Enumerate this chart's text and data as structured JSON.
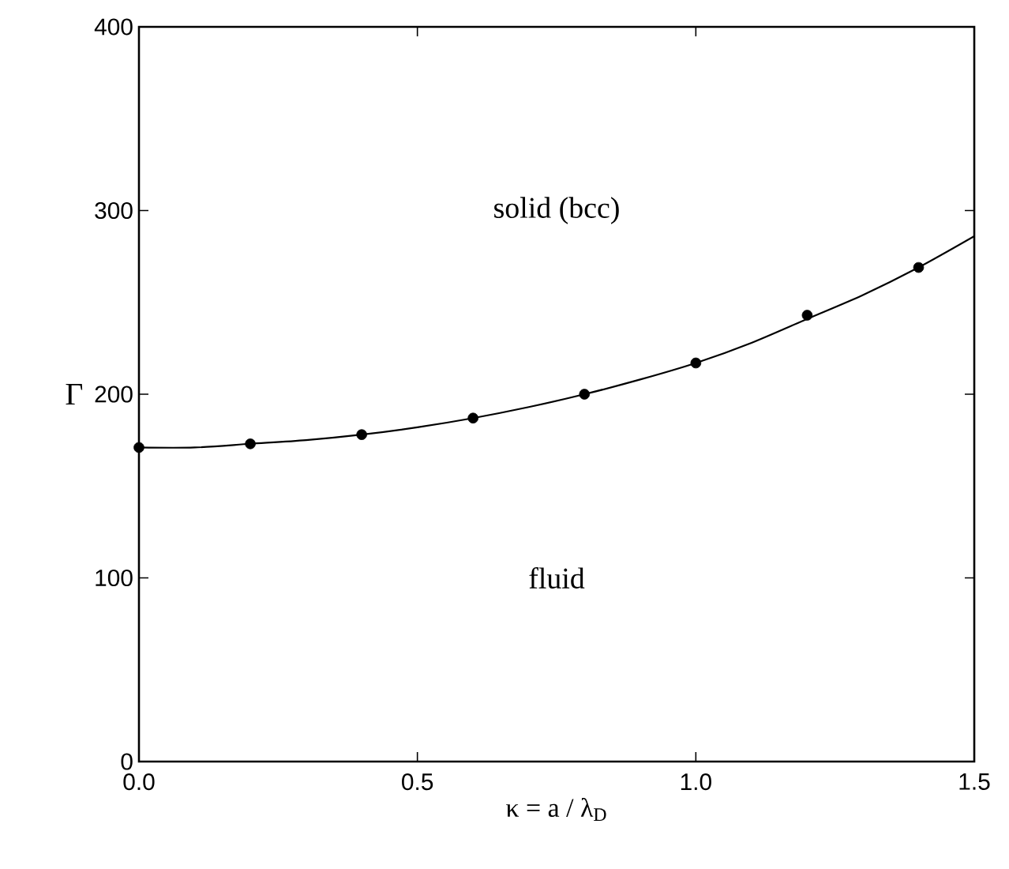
{
  "chart_data": {
    "type": "scatter",
    "xlabel": "κ = a / λ$_{D}$",
    "ylabel": "Γ",
    "xlim": [
      0,
      1.5
    ],
    "ylim": [
      0,
      400
    ],
    "xticks": [
      {
        "value": 0,
        "label": "0.0"
      },
      0.5,
      {
        "value": 1,
        "label": "1.0"
      },
      1.5
    ],
    "yticks": [
      0,
      100,
      200,
      300,
      400
    ],
    "series": [
      {
        "color": "#000000",
        "marker": "circle",
        "x": [
          0,
          0.2,
          0.4,
          0.6,
          0.8,
          1.0,
          1.2,
          1.4
        ],
        "values": [
          171,
          173,
          178,
          187,
          200,
          217,
          243,
          269
        ]
      },
      {
        "type": "line",
        "color": "#000000",
        "marker": "none",
        "line_style": "solid",
        "x": [
          0,
          0.1,
          0.2,
          0.3,
          0.4,
          0.5,
          0.6,
          0.7,
          0.8,
          0.9,
          1.0,
          1.1,
          1.2,
          1.3,
          1.4,
          1.5
        ],
        "values": [
          171,
          171,
          173,
          175,
          178,
          182,
          187,
          193,
          200,
          208,
          217,
          228,
          241,
          254,
          269,
          286
        ]
      }
    ],
    "annotations": [
      "solid (bcc)",
      "fluid"
    ]
  }
}
